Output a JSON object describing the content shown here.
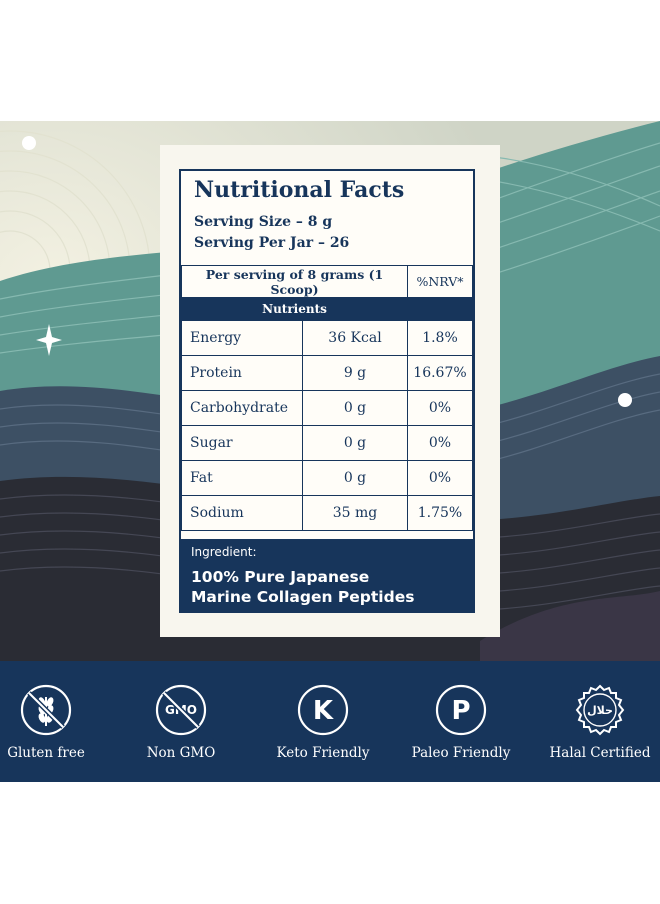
{
  "facts": {
    "title": "Nutritional Facts",
    "serving_size": "Serving Size – 8 g",
    "servings_per_jar": "Serving Per Jar – 26",
    "per_serving_header": "Per serving of 8 grams (1 Scoop)",
    "nrv_header": "%NRV*",
    "nutrients_header": "Nutrients",
    "rows": [
      {
        "name": "Energy",
        "amount": "36 Kcal",
        "nrv": "1.8%"
      },
      {
        "name": "Protein",
        "amount": "9 g",
        "nrv": "16.67%"
      },
      {
        "name": "Carbohydrate",
        "amount": "0 g",
        "nrv": "0%"
      },
      {
        "name": "Sugar",
        "amount": "0 g",
        "nrv": "0%"
      },
      {
        "name": "Fat",
        "amount": "0 g",
        "nrv": "0%"
      },
      {
        "name": "Sodium",
        "amount": "35 mg",
        "nrv": "1.75%"
      }
    ],
    "ingredient_label": "Ingredient:",
    "ingredient_line1": "100% Pure Japanese",
    "ingredient_line2": "Marine Collagen Peptides"
  },
  "badges": [
    {
      "label": "Gluten free",
      "icon": "wheat-crossed-icon"
    },
    {
      "label": "Non GMO",
      "icon": "gmo-crossed-icon",
      "icon_text": "GMO"
    },
    {
      "label": "Keto Friendly",
      "icon": "letter-k-icon",
      "icon_text": "K"
    },
    {
      "label": "Paleo Friendly",
      "icon": "letter-p-icon",
      "icon_text": "P"
    },
    {
      "label": "Halal Certified",
      "icon": "halal-seal-icon",
      "icon_text": "حلال"
    }
  ],
  "colors": {
    "navy": "#17355b",
    "teal": "#5f9a91",
    "slate": "#3d5064",
    "dark": "#2a2c34",
    "cream": "#f8f6ee"
  }
}
